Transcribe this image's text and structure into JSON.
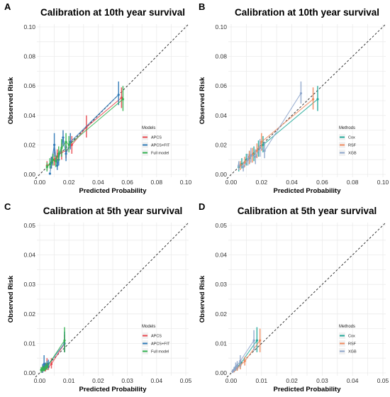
{
  "colors": {
    "APCS": "#e8484f",
    "APCS+FIT": "#2f79b7",
    "Full model": "#34b251",
    "Cox": "#23a99a",
    "RSF": "#f08a5d",
    "XGB": "#8ea6cc"
  },
  "chart_data": [
    {
      "letter": "A",
      "type": "line",
      "title": "Calibration at 10th year survival",
      "xlabel": "Predicted Probability",
      "ylabel": "Observed Risk",
      "xlim": [
        0,
        0.1
      ],
      "ylim": [
        0,
        0.1
      ],
      "ticks": [
        "0.00",
        "0.02",
        "0.04",
        "0.06",
        "0.08",
        "0.10"
      ],
      "reference_line": "y = x (dashed)",
      "legend": {
        "title": "Models",
        "position": "bottom-right"
      },
      "series": [
        {
          "name": "APCS",
          "x": [
            0.005,
            0.008,
            0.01,
            0.012,
            0.015,
            0.018,
            0.022,
            0.032,
            0.056
          ],
          "y": [
            0.006,
            0.008,
            0.01,
            0.012,
            0.015,
            0.016,
            0.02,
            0.032,
            0.052
          ],
          "lo": [
            0.003,
            0.004,
            0.006,
            0.007,
            0.01,
            0.011,
            0.014,
            0.025,
            0.045
          ],
          "hi": [
            0.009,
            0.012,
            0.015,
            0.017,
            0.021,
            0.022,
            0.026,
            0.04,
            0.059
          ]
        },
        {
          "name": "APCS+FIT",
          "x": [
            0.007,
            0.008,
            0.01,
            0.012,
            0.013,
            0.016,
            0.018,
            0.021,
            0.054
          ],
          "y": [
            0.0005,
            0.008,
            0.02,
            0.006,
            0.01,
            0.025,
            0.014,
            0.022,
            0.054
          ],
          "lo": [
            0.0,
            0.004,
            0.012,
            0.003,
            0.006,
            0.019,
            0.009,
            0.017,
            0.047
          ],
          "hi": [
            0.001,
            0.012,
            0.028,
            0.01,
            0.015,
            0.03,
            0.02,
            0.028,
            0.063
          ]
        },
        {
          "name": "Full model",
          "x": [
            0.005,
            0.007,
            0.009,
            0.011,
            0.013,
            0.015,
            0.018,
            0.02,
            0.057
          ],
          "y": [
            0.005,
            0.007,
            0.01,
            0.009,
            0.014,
            0.018,
            0.022,
            0.02,
            0.051
          ],
          "lo": [
            0.002,
            0.004,
            0.006,
            0.005,
            0.009,
            0.012,
            0.016,
            0.015,
            0.043
          ],
          "hi": [
            0.008,
            0.011,
            0.014,
            0.013,
            0.019,
            0.024,
            0.028,
            0.026,
            0.06
          ]
        }
      ]
    },
    {
      "letter": "B",
      "type": "line",
      "title": "Calibration at 10th year survival",
      "xlabel": "Predicted Probability",
      "ylabel": "Observed Risk",
      "xlim": [
        0,
        0.1
      ],
      "ylim": [
        0,
        0.1
      ],
      "ticks": [
        "0.00",
        "0.02",
        "0.04",
        "0.06",
        "0.08",
        "0.10"
      ],
      "reference_line": "y = x (dashed)",
      "legend": {
        "title": "Methods",
        "position": "bottom-right"
      },
      "series": [
        {
          "name": "Cox",
          "x": [
            0.005,
            0.007,
            0.01,
            0.012,
            0.015,
            0.018,
            0.021,
            0.057
          ],
          "y": [
            0.005,
            0.007,
            0.01,
            0.011,
            0.014,
            0.017,
            0.02,
            0.051
          ],
          "lo": [
            0.002,
            0.004,
            0.006,
            0.007,
            0.009,
            0.012,
            0.015,
            0.043
          ],
          "hi": [
            0.008,
            0.011,
            0.014,
            0.016,
            0.019,
            0.023,
            0.026,
            0.06
          ]
        },
        {
          "name": "RSF",
          "x": [
            0.006,
            0.009,
            0.012,
            0.014,
            0.017,
            0.02,
            0.054
          ],
          "y": [
            0.006,
            0.008,
            0.012,
            0.013,
            0.016,
            0.022,
            0.051
          ],
          "lo": [
            0.003,
            0.005,
            0.007,
            0.008,
            0.011,
            0.016,
            0.044
          ],
          "hi": [
            0.009,
            0.012,
            0.016,
            0.018,
            0.021,
            0.028,
            0.059
          ]
        },
        {
          "name": "XGB",
          "x": [
            0.005,
            0.008,
            0.011,
            0.013,
            0.016,
            0.019,
            0.022,
            0.046
          ],
          "y": [
            0.006,
            0.005,
            0.01,
            0.013,
            0.012,
            0.018,
            0.016,
            0.055
          ],
          "lo": [
            0.003,
            0.002,
            0.006,
            0.008,
            0.007,
            0.012,
            0.011,
            0.048
          ],
          "hi": [
            0.009,
            0.008,
            0.014,
            0.018,
            0.017,
            0.024,
            0.022,
            0.063
          ]
        }
      ]
    },
    {
      "letter": "C",
      "type": "line",
      "title": "Calibration at 5th year survival",
      "xlabel": "Predicted Probability",
      "ylabel": "Observed Risk",
      "xlim": [
        0,
        0.05
      ],
      "ylim": [
        0,
        0.05
      ],
      "ticks": [
        "0.00",
        "0.01",
        "0.02",
        "0.03",
        "0.04",
        "0.05"
      ],
      "reference_line": "y = x (dashed)",
      "legend": {
        "title": "Models",
        "position": "bottom-right"
      },
      "series": [
        {
          "name": "APCS",
          "x": [
            0.001,
            0.0015,
            0.002,
            0.0025,
            0.003,
            0.004,
            0.0085
          ],
          "y": [
            0.001,
            0.002,
            0.0015,
            0.003,
            0.002,
            0.003,
            0.01
          ],
          "lo": [
            0.0,
            0.001,
            0.0005,
            0.001,
            0.001,
            0.0015,
            0.007
          ],
          "hi": [
            0.002,
            0.0035,
            0.003,
            0.005,
            0.0035,
            0.005,
            0.013
          ]
        },
        {
          "name": "APCS+FIT",
          "x": [
            0.001,
            0.0015,
            0.002,
            0.0025,
            0.003,
            0.0085
          ],
          "y": [
            0.0015,
            0.003,
            0.002,
            0.0025,
            0.003,
            0.01
          ],
          "lo": [
            0.0,
            0.001,
            0.001,
            0.0015,
            0.0015,
            0.007
          ],
          "hi": [
            0.003,
            0.006,
            0.0035,
            0.004,
            0.0045,
            0.014
          ]
        },
        {
          "name": "Full model",
          "x": [
            0.0005,
            0.001,
            0.0015,
            0.002,
            0.0025,
            0.0085
          ],
          "y": [
            0.001,
            0.0015,
            0.001,
            0.002,
            0.002,
            0.011
          ],
          "lo": [
            0.0,
            0.0005,
            0.0005,
            0.001,
            0.001,
            0.007
          ],
          "hi": [
            0.002,
            0.0025,
            0.002,
            0.003,
            0.0035,
            0.0155
          ]
        }
      ]
    },
    {
      "letter": "D",
      "type": "line",
      "title": "Calibration at 5th year survival",
      "xlabel": "Predicted Probability",
      "ylabel": "Observed Risk",
      "xlim": [
        0,
        0.05
      ],
      "ylim": [
        0,
        0.05
      ],
      "ticks": [
        "0.00",
        "0.01",
        "0.02",
        "0.03",
        "0.04",
        "0.05"
      ],
      "reference_line": "y = x (dashed)",
      "legend": {
        "title": "Methods",
        "position": "bottom-right"
      },
      "series": [
        {
          "name": "Cox",
          "x": [
            0.0005,
            0.001,
            0.0015,
            0.002,
            0.003,
            0.0085
          ],
          "y": [
            0.0005,
            0.001,
            0.0015,
            0.002,
            0.003,
            0.011
          ],
          "lo": [
            0.0,
            0.0003,
            0.0007,
            0.001,
            0.0015,
            0.007
          ],
          "hi": [
            0.001,
            0.002,
            0.0025,
            0.003,
            0.0045,
            0.0155
          ]
        },
        {
          "name": "RSF",
          "x": [
            0.0005,
            0.001,
            0.002,
            0.003,
            0.0045,
            0.0095
          ],
          "y": [
            0.0005,
            0.0008,
            0.0015,
            0.0025,
            0.004,
            0.011
          ],
          "lo": [
            0.0,
            0.0002,
            0.0007,
            0.0012,
            0.0025,
            0.007
          ],
          "hi": [
            0.001,
            0.0015,
            0.0025,
            0.004,
            0.0055,
            0.015
          ]
        },
        {
          "name": "XGB",
          "x": [
            0.0005,
            0.001,
            0.0015,
            0.002,
            0.003,
            0.0075
          ],
          "y": [
            0.0005,
            0.0012,
            0.002,
            0.0025,
            0.004,
            0.011
          ],
          "lo": [
            0.0,
            0.0005,
            0.0008,
            0.0012,
            0.002,
            0.0075
          ],
          "hi": [
            0.0012,
            0.002,
            0.0035,
            0.004,
            0.006,
            0.0145
          ]
        }
      ]
    }
  ]
}
